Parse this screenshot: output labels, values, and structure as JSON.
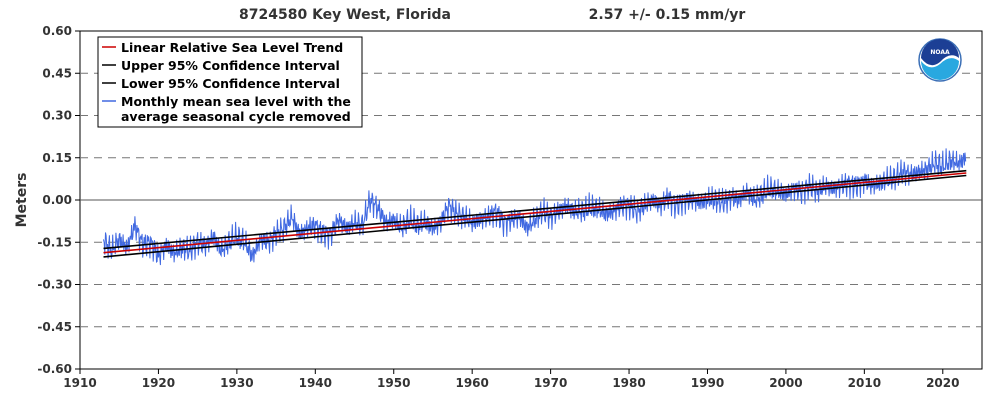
{
  "chart_data": {
    "type": "line",
    "title": "8724580 Key West, Florida",
    "trend_label": "2.57 +/-  0.15 mm/yr",
    "xlabel": "",
    "ylabel": "Meters",
    "xlim": [
      1910,
      2025
    ],
    "ylim": [
      -0.6,
      0.6
    ],
    "x_ticks": [
      1910,
      1920,
      1930,
      1940,
      1950,
      1960,
      1970,
      1980,
      1990,
      2000,
      2010,
      2020
    ],
    "y_ticks": [
      -0.6,
      -0.45,
      -0.3,
      -0.15,
      0.0,
      0.15,
      0.3,
      0.45,
      0.6
    ],
    "y_tick_labels": [
      "-0.60",
      "-0.45",
      "-0.30",
      "-0.15",
      "0.00",
      "0.15",
      "0.30",
      "0.45",
      "0.60"
    ],
    "grid": "horizontal dashed",
    "legend_position": "top-left",
    "logo": "noaa-logo",
    "series": [
      {
        "name": "Linear Relative Sea Level Trend",
        "color": "#cc0000",
        "points": [
          [
            1913.0,
            -0.187
          ],
          [
            2023.0,
            0.0957
          ]
        ]
      },
      {
        "name": "Upper 95% Confidence Interval",
        "color": "#000000",
        "points": [
          [
            1913.0,
            -0.172
          ],
          [
            2023.0,
            0.104
          ]
        ]
      },
      {
        "name": "Lower 95% Confidence Interval",
        "color": "#000000",
        "points": [
          [
            1913.0,
            -0.202
          ],
          [
            2023.0,
            0.087
          ]
        ]
      },
      {
        "name": "Monthly mean sea level with the average seasonal cycle removed",
        "color": "#4169e1",
        "points": [
          [
            1913.0,
            -0.14
          ],
          [
            1914.0,
            -0.18
          ],
          [
            1915.0,
            -0.14
          ],
          [
            1916.0,
            -0.17
          ],
          [
            1917.0,
            -0.09
          ],
          [
            1918.0,
            -0.16
          ],
          [
            1919.0,
            -0.15
          ],
          [
            1920.0,
            -0.2
          ],
          [
            1921.0,
            -0.16
          ],
          [
            1922.0,
            -0.19
          ],
          [
            1923.0,
            -0.17
          ],
          [
            1924.0,
            -0.18
          ],
          [
            1925.0,
            -0.15
          ],
          [
            1926.0,
            -0.16
          ],
          [
            1927.0,
            -0.13
          ],
          [
            1928.0,
            -0.18
          ],
          [
            1929.0,
            -0.15
          ],
          [
            1930.0,
            -0.13
          ],
          [
            1931.0,
            -0.15
          ],
          [
            1932.0,
            -0.2
          ],
          [
            1933.0,
            -0.14
          ],
          [
            1934.0,
            -0.15
          ],
          [
            1935.0,
            -0.12
          ],
          [
            1936.0,
            -0.1
          ],
          [
            1937.0,
            -0.06
          ],
          [
            1938.0,
            -0.12
          ],
          [
            1939.0,
            -0.1
          ],
          [
            1940.0,
            -0.09
          ],
          [
            1941.0,
            -0.12
          ],
          [
            1942.0,
            -0.12
          ],
          [
            1943.0,
            -0.07
          ],
          [
            1944.0,
            -0.1
          ],
          [
            1945.0,
            -0.08
          ],
          [
            1946.0,
            -0.09
          ],
          [
            1947.0,
            0.0
          ],
          [
            1948.0,
            -0.03
          ],
          [
            1949.0,
            -0.08
          ],
          [
            1950.0,
            -0.07
          ],
          [
            1951.0,
            -0.1
          ],
          [
            1952.0,
            -0.07
          ],
          [
            1953.0,
            -0.09
          ],
          [
            1954.0,
            -0.08
          ],
          [
            1955.0,
            -0.1
          ],
          [
            1956.0,
            -0.08
          ],
          [
            1957.0,
            -0.02
          ],
          [
            1958.0,
            -0.05
          ],
          [
            1959.0,
            -0.06
          ],
          [
            1960.0,
            -0.08
          ],
          [
            1961.0,
            -0.07
          ],
          [
            1962.0,
            -0.06
          ],
          [
            1963.0,
            -0.04
          ],
          [
            1964.0,
            -0.08
          ],
          [
            1965.0,
            -0.07
          ],
          [
            1966.0,
            -0.06
          ],
          [
            1967.0,
            -0.1
          ],
          [
            1968.0,
            -0.07
          ],
          [
            1969.0,
            -0.04
          ],
          [
            1970.0,
            -0.06
          ],
          [
            1971.0,
            -0.04
          ],
          [
            1972.0,
            -0.02
          ],
          [
            1973.0,
            -0.04
          ],
          [
            1974.0,
            -0.04
          ],
          [
            1975.0,
            -0.03
          ],
          [
            1976.0,
            -0.03
          ],
          [
            1977.0,
            -0.05
          ],
          [
            1978.0,
            -0.04
          ],
          [
            1979.0,
            -0.02
          ],
          [
            1980.0,
            -0.02
          ],
          [
            1981.0,
            -0.04
          ],
          [
            1982.0,
            -0.02
          ],
          [
            1983.0,
            0.0
          ],
          [
            1984.0,
            -0.02
          ],
          [
            1985.0,
            0.01
          ],
          [
            1986.0,
            -0.02
          ],
          [
            1987.0,
            0.0
          ],
          [
            1988.0,
            0.0
          ],
          [
            1989.0,
            -0.01
          ],
          [
            1990.0,
            0.0
          ],
          [
            1991.0,
            0.0
          ],
          [
            1992.0,
            -0.01
          ],
          [
            1993.0,
            0.01
          ],
          [
            1994.0,
            0.0
          ],
          [
            1995.0,
            0.03
          ],
          [
            1996.0,
            0.0
          ],
          [
            1997.0,
            0.02
          ],
          [
            1998.0,
            0.04
          ],
          [
            1999.0,
            0.03
          ],
          [
            2000.0,
            0.02
          ],
          [
            2001.0,
            0.04
          ],
          [
            2002.0,
            0.03
          ],
          [
            2003.0,
            0.05
          ],
          [
            2004.0,
            0.03
          ],
          [
            2005.0,
            0.05
          ],
          [
            2006.0,
            0.04
          ],
          [
            2007.0,
            0.05
          ],
          [
            2008.0,
            0.06
          ],
          [
            2009.0,
            0.05
          ],
          [
            2010.0,
            0.07
          ],
          [
            2011.0,
            0.05
          ],
          [
            2012.0,
            0.06
          ],
          [
            2013.0,
            0.07
          ],
          [
            2014.0,
            0.08
          ],
          [
            2015.0,
            0.1
          ],
          [
            2016.0,
            0.09
          ],
          [
            2017.0,
            0.1
          ],
          [
            2018.0,
            0.11
          ],
          [
            2019.0,
            0.13
          ],
          [
            2020.0,
            0.12
          ],
          [
            2021.0,
            0.14
          ],
          [
            2022.0,
            0.13
          ],
          [
            2023.0,
            0.15
          ]
        ]
      }
    ]
  }
}
